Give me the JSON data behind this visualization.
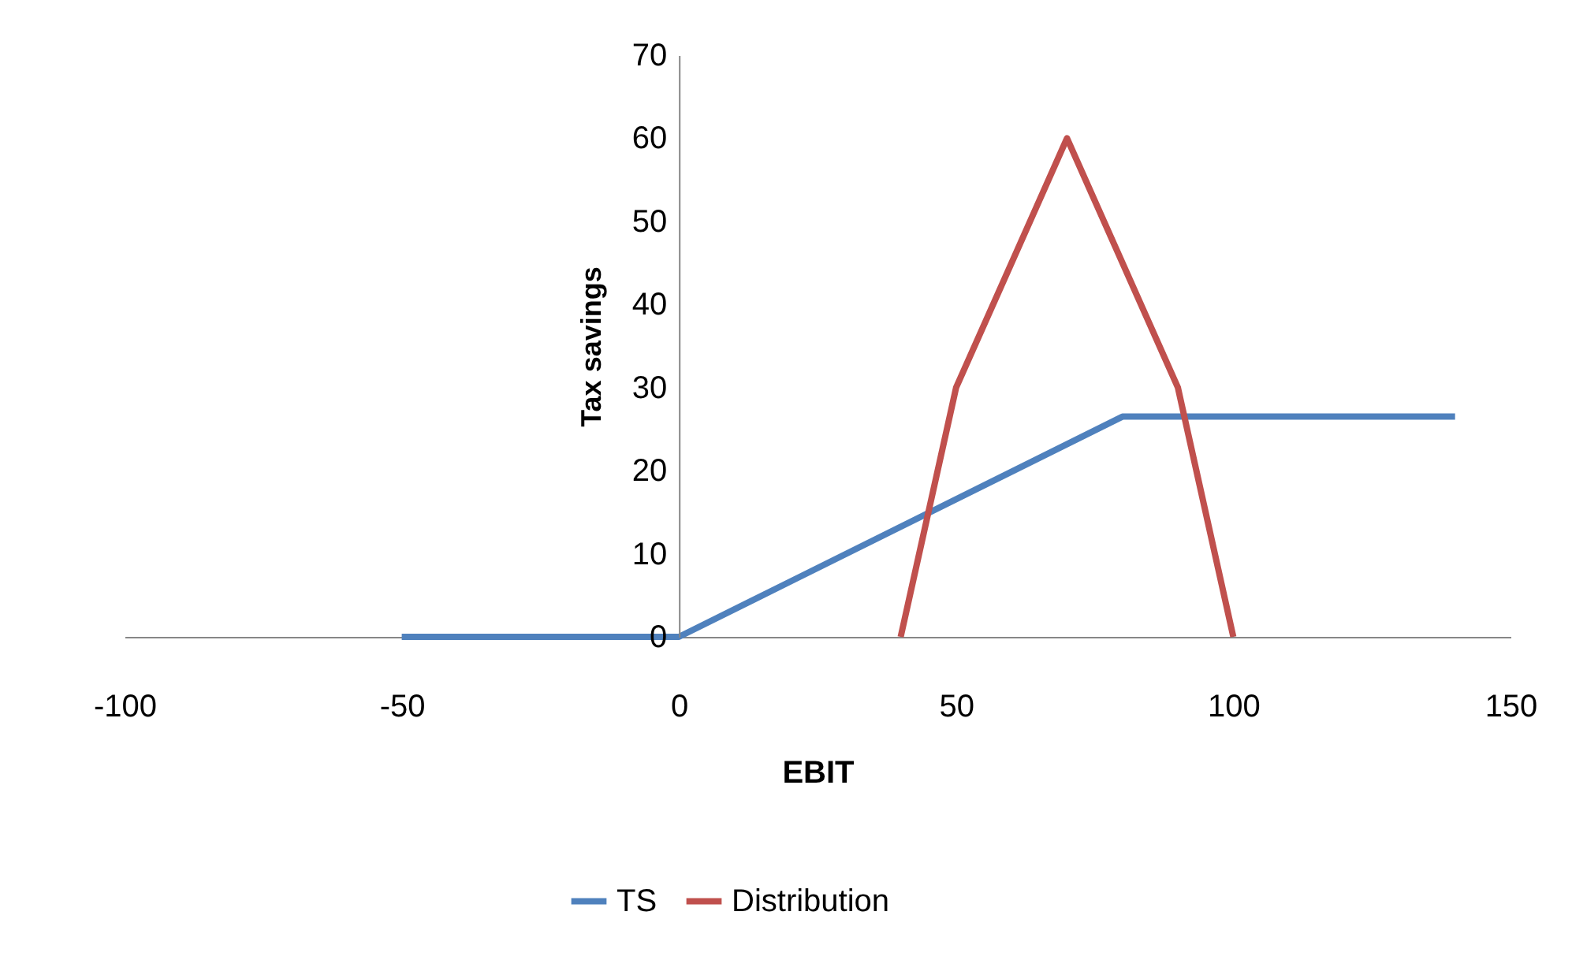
{
  "chart_data": {
    "type": "line",
    "xlabel": "EBIT",
    "ylabel": "Tax savings",
    "series": [
      {
        "name": "TS",
        "color": "#4f81bd",
        "x": [
          -50,
          0,
          80,
          140
        ],
        "values": [
          0,
          0,
          26.5,
          26.5
        ]
      },
      {
        "name": "Distribution",
        "color": "#c0504d",
        "x": [
          40,
          50,
          70,
          90,
          100
        ],
        "values": [
          0,
          30,
          60,
          30,
          0
        ]
      }
    ],
    "xlim": [
      -100,
      150
    ],
    "xticks": [
      -100,
      -50,
      0,
      50,
      100,
      150
    ],
    "ylim": [
      0,
      70
    ],
    "yticks": [
      0,
      10,
      20,
      30,
      40,
      50,
      60,
      70
    ],
    "grid": false,
    "legend": "bottom",
    "marker": "none",
    "line_style": "solid"
  }
}
